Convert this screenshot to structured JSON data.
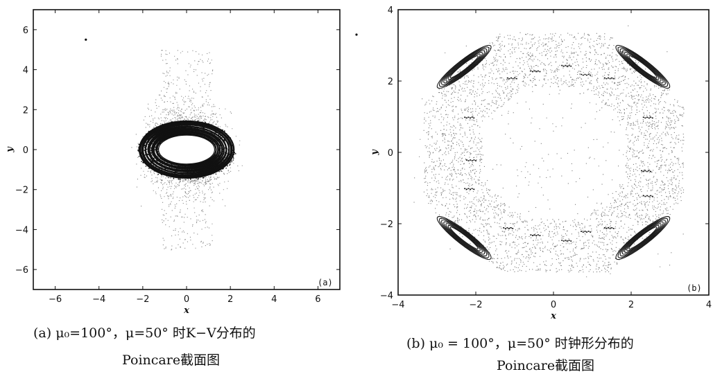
{
  "chart_data": [
    {
      "type": "scatter",
      "panel_label": "(a)",
      "xlabel": "x",
      "ylabel": "y",
      "xlim": [
        -7,
        7
      ],
      "ylim": [
        -7,
        7
      ],
      "xticks": [
        -6,
        -4,
        -2,
        0,
        2,
        4,
        6
      ],
      "yticks": [
        -6,
        -4,
        -2,
        0,
        2,
        4,
        6
      ],
      "series": [
        {
          "values": {
            "kind": "dense-ellipse-ring",
            "center": [
              0,
              0
            ],
            "inner_radii": [
              1.3,
              0.75
            ],
            "outer_radii": [
              2.2,
              1.45
            ]
          }
        },
        {
          "values": {
            "kind": "diffuse-scatter",
            "x_range": [
              -5,
              5
            ],
            "y_range": [
              -5,
              5
            ]
          }
        },
        {
          "values": {
            "kind": "isolated-points",
            "points": [
              [
                -4.6,
                5.5
              ]
            ]
          }
        }
      ],
      "caption": {
        "line1": "(a) μ₀=100°，μ=50° 时K−V分布的",
        "line2": "Poincare截面图"
      }
    },
    {
      "type": "scatter",
      "panel_label": "(b)",
      "xlabel": "x",
      "ylabel": "y",
      "xlim": [
        -4,
        4
      ],
      "ylim": [
        -4,
        4
      ],
      "xticks": [
        -4,
        -2,
        0,
        2,
        4
      ],
      "yticks": [
        -4,
        -2,
        0,
        2,
        4
      ],
      "series": [
        {
          "values": {
            "kind": "octagonal-ring",
            "inner_radius": 1.9,
            "outer_radius": 3.4
          }
        },
        {
          "values": {
            "kind": "dense-lobes",
            "centers": [
              [
                -2.3,
                2.4
              ],
              [
                2.3,
                2.4
              ],
              [
                -2.3,
                -2.4
              ],
              [
                2.3,
                -2.4
              ]
            ]
          }
        }
      ],
      "caption": {
        "line1": "(b) μ₀ = 100°，μ=50° 时钟形分布的",
        "line2": "Poincare截面图"
      }
    }
  ]
}
